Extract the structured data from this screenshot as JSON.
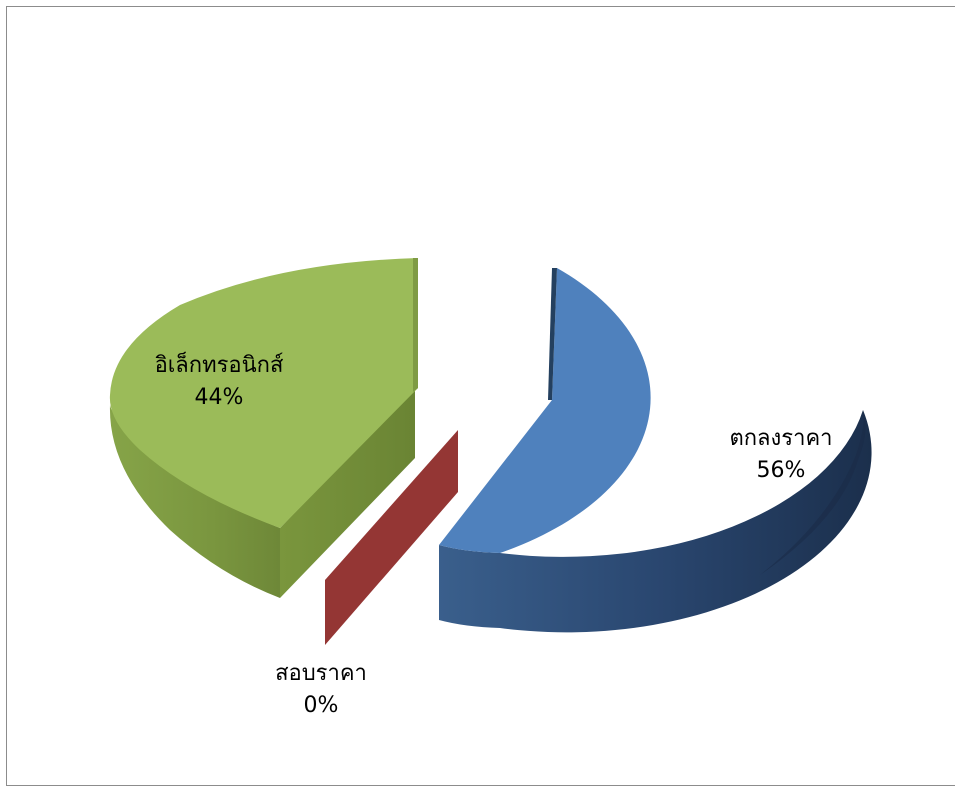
{
  "chart_data": {
    "type": "pie",
    "style": "3d-exploded",
    "title": "",
    "legend": "none",
    "slices": [
      {
        "label": "ตกลงราคา",
        "value": 56,
        "percent_label": "56%",
        "color": "#4f81bd",
        "side_color": "#2c4a6e"
      },
      {
        "label": "สอบราคา",
        "value": 0,
        "percent_label": "0%",
        "color": "#943634",
        "side_color": "#943634"
      },
      {
        "label": "อิเล็กทรอนิกส์",
        "value": 44,
        "percent_label": "44%",
        "color": "#9bbb59",
        "side_color": "#6f8a3b"
      }
    ]
  }
}
